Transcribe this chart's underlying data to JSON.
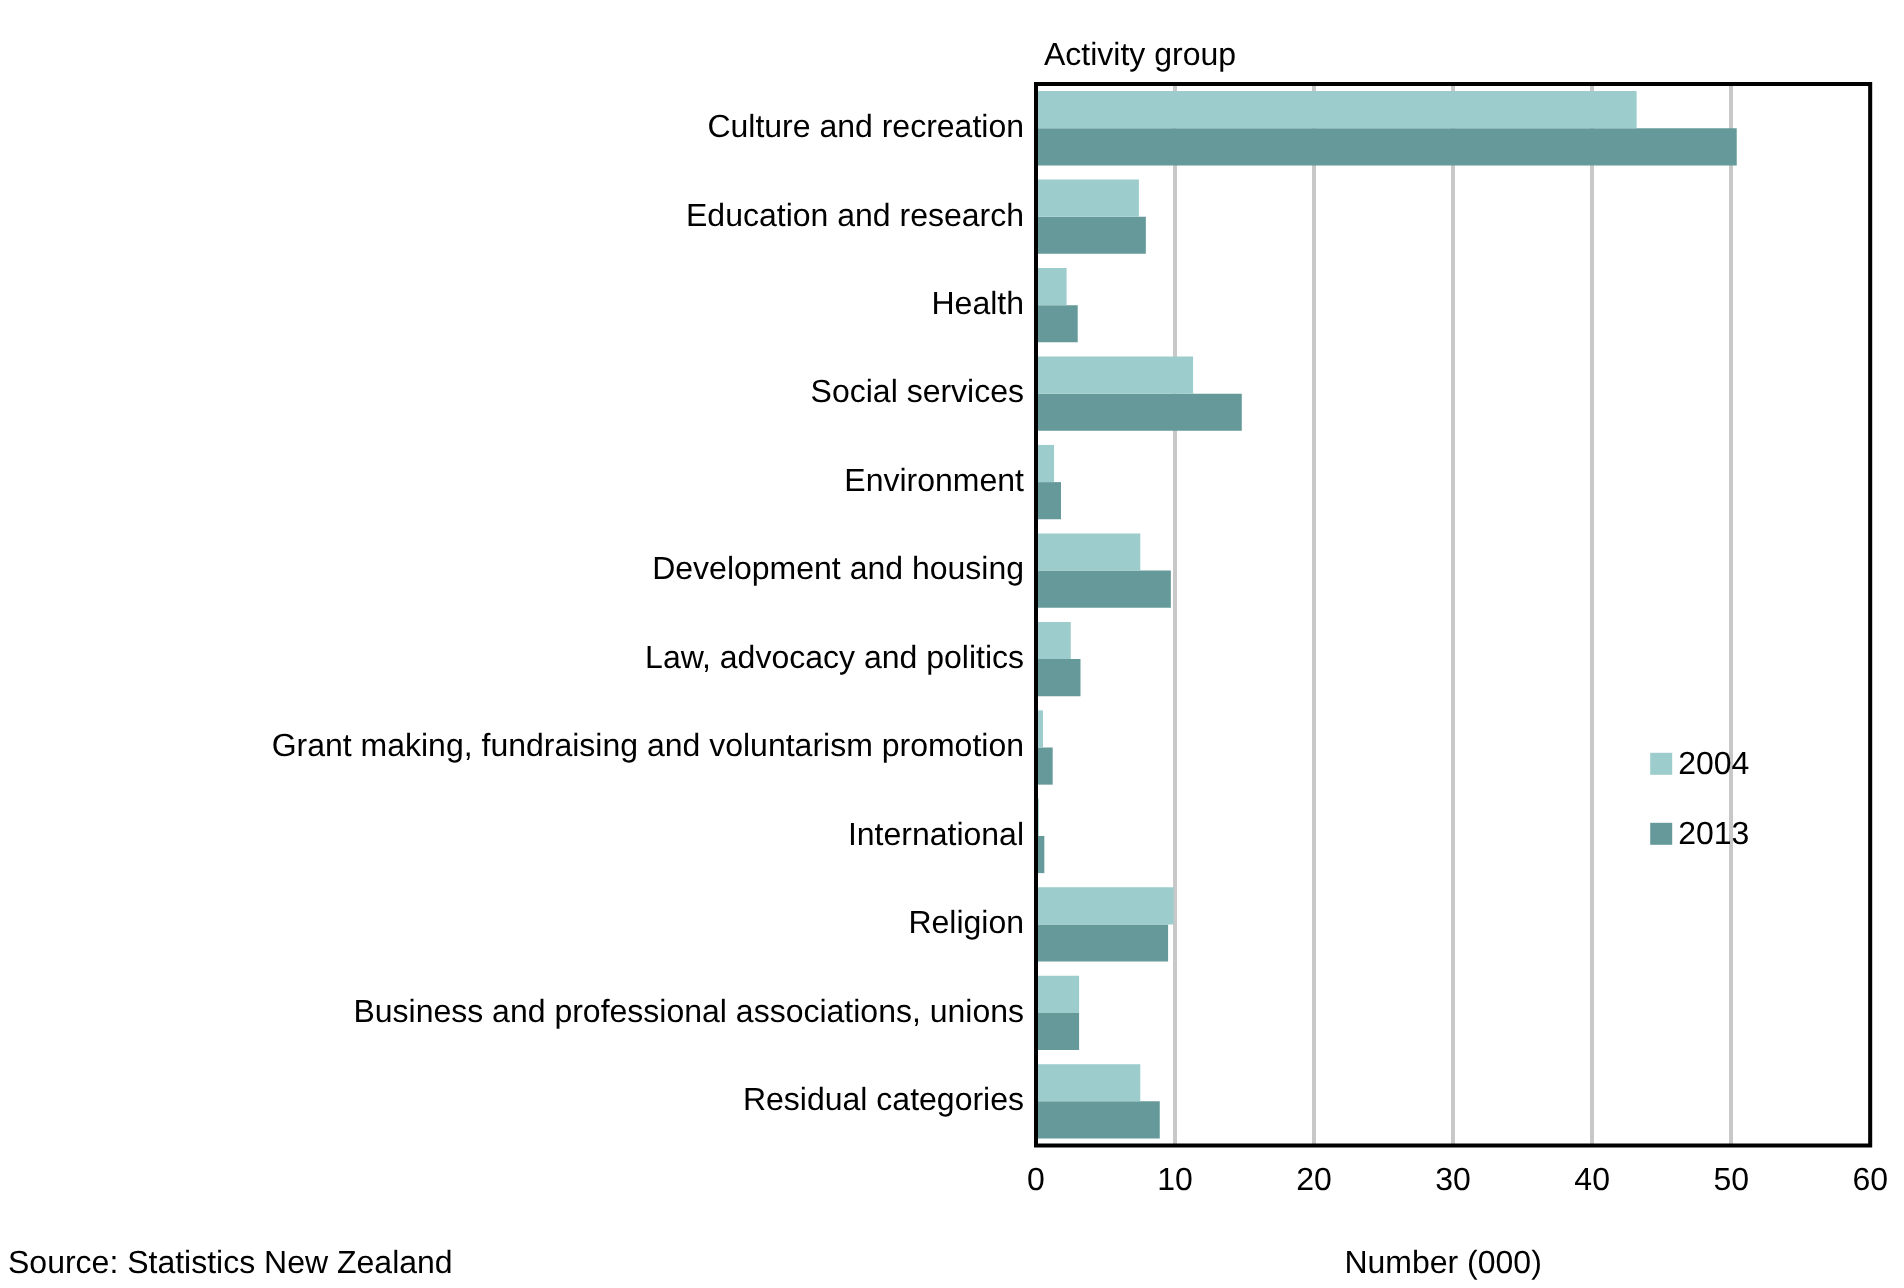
{
  "chart_data": {
    "type": "bar",
    "orientation": "horizontal",
    "ylabel": "Activity group",
    "xlabel": "Number (000)",
    "categories": [
      "Culture and recreation",
      "Education and research",
      "Health",
      "Social services",
      "Environment",
      "Development and housing",
      "Law, advocacy and politics",
      "Grant making, fundraising and voluntarism promotion",
      "International",
      "Religion",
      "Business and professional associations, unions",
      "Residual categories"
    ],
    "series": [
      {
        "name": "2004",
        "color": "#9ccccc",
        "values": [
          43.2,
          7.4,
          2.2,
          11.3,
          1.3,
          7.5,
          2.5,
          0.5,
          0.2,
          9.9,
          3.1,
          7.5
        ]
      },
      {
        "name": "2013",
        "color": "#669999",
        "values": [
          50.4,
          7.9,
          3.0,
          14.8,
          1.8,
          9.7,
          3.2,
          1.2,
          0.6,
          9.5,
          3.1,
          8.9
        ]
      }
    ],
    "xlim": [
      0,
      60
    ],
    "xticks": [
      0,
      10,
      20,
      30,
      40,
      50,
      60
    ],
    "grid": "x",
    "legend": "right",
    "annotations": [
      "Source: Statistics New Zealand"
    ]
  }
}
